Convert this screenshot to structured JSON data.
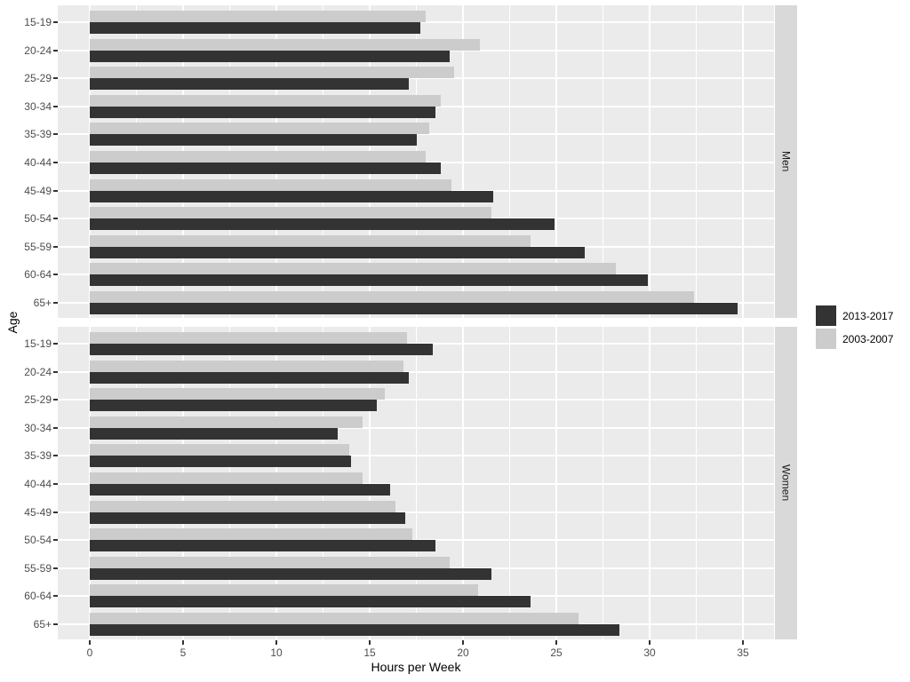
{
  "chart_data": {
    "type": "bar",
    "orientation": "horizontal",
    "title": "",
    "xlabel": "Hours per Week",
    "ylabel": "Age",
    "xlim": [
      0,
      35
    ],
    "x_major_ticks": [
      0,
      5,
      10,
      15,
      20,
      25,
      30,
      35
    ],
    "x_minor_ticks": [
      2.5,
      7.5,
      12.5,
      17.5,
      22.5,
      27.5,
      32.5
    ],
    "grid": "on",
    "legend_position": "right",
    "categories": [
      "15-19",
      "20-24",
      "25-29",
      "30-34",
      "35-39",
      "40-44",
      "45-49",
      "50-54",
      "55-59",
      "60-64",
      "65+"
    ],
    "legend": [
      {
        "label": "2013-2017",
        "color": "#333333"
      },
      {
        "label": "2003-2007",
        "color": "#cccccc"
      }
    ],
    "facets": [
      {
        "label": "Men",
        "series": [
          {
            "name": "2013-2017",
            "values": [
              17.7,
              19.3,
              17.1,
              18.5,
              17.5,
              18.8,
              21.6,
              24.9,
              26.5,
              29.9,
              34.7
            ]
          },
          {
            "name": "2003-2007",
            "values": [
              18.0,
              20.9,
              19.5,
              18.8,
              18.2,
              18.0,
              19.4,
              21.5,
              23.6,
              28.2,
              32.4
            ]
          }
        ]
      },
      {
        "label": "Women",
        "series": [
          {
            "name": "2013-2017",
            "values": [
              18.4,
              17.1,
              15.4,
              13.3,
              14.0,
              16.1,
              16.9,
              18.5,
              21.5,
              23.6,
              28.4
            ]
          },
          {
            "name": "2003-2007",
            "values": [
              17.0,
              16.8,
              15.8,
              14.6,
              13.9,
              14.6,
              16.4,
              17.3,
              19.3,
              20.8,
              26.2
            ]
          }
        ]
      }
    ],
    "colors": {
      "panel_background": "#ebebeb",
      "strip_background": "#d9d9d9",
      "gridline": "#ffffff",
      "tick_text": "#4d4d4d",
      "axis_title_text": "#000000",
      "strip_text": "#1a1a1a",
      "series_2013_2017": "#333333",
      "series_2003_2007": "#cccccc"
    }
  }
}
